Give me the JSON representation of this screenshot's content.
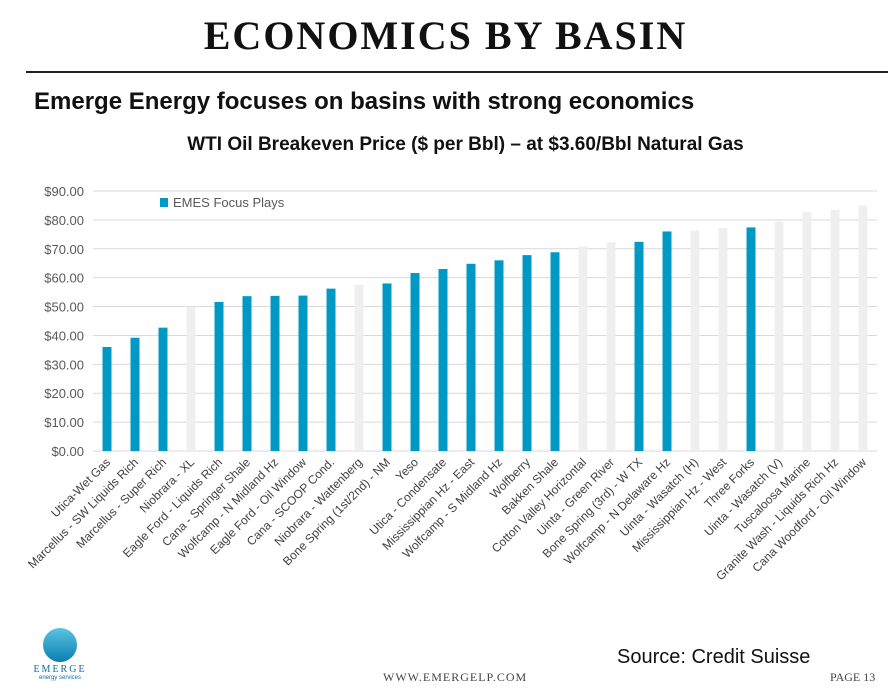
{
  "header": {
    "title": "ECONOMICS BY BASIN",
    "subtitle": "Emerge Energy focuses on basins with strong economics"
  },
  "footer": {
    "source": "Source:  Credit Suisse",
    "website": "WWW.EMERGELP.COM",
    "page": "PAGE 13",
    "logo_text": "EMERGE",
    "logo_subtext": "energy services"
  },
  "chart_data": {
    "type": "bar",
    "title": "WTI Oil Breakeven Price ($ per Bbl) – at $3.60/Bbl Natural Gas",
    "ylim": [
      0,
      90
    ],
    "yticks": [
      "$0.00",
      "$10.00",
      "$20.00",
      "$30.00",
      "$40.00",
      "$50.00",
      "$60.00",
      "$70.00",
      "$80.00",
      "$90.00"
    ],
    "grid": true,
    "legend": {
      "position": "top-left",
      "label": "EMES Focus Plays"
    },
    "colors": {
      "focus": "#0099c6",
      "other": "#efefef"
    },
    "categories": [
      "Utica-Wet Gas",
      "Marcellus - SW Liquids Rich",
      "Marcellus - Super Rich",
      "Niobrara - XL",
      "Eagle Ford - Liquids Rich",
      "Cana - Springer Shale",
      "Wolfcamp - N Midland Hz",
      "Eagle Ford - Oil Window",
      "Cana - SCOOP Cond.",
      "Niobrara - Wattenberg",
      "Bone Spring (1st/2nd) - NM",
      "Yeso",
      "Utica - Condensate",
      "Mississippian Hz - East",
      "Wolfcamp - S Midland Hz",
      "Wolfberry",
      "Bakken Shale",
      "Cotton Valley Horizontal",
      "Uinta - Green River",
      "Bone Spring (3rd) - W TX",
      "Wolfcamp - N Delaware Hz",
      "Uinta - Wasatch (H)",
      "Mississippian Hz - West",
      "Three Forks",
      "Uinta - Wasatch (V)",
      "Tuscaloosa Marine",
      "Granite Wash - Liquids Rich Hz",
      "Cana Woodford - Oil Window"
    ],
    "values": [
      36,
      39.2,
      42.7,
      50,
      51.6,
      53.6,
      53.7,
      53.8,
      56.2,
      57.6,
      58,
      61.6,
      63,
      64.8,
      66,
      67.8,
      68.8,
      70.8,
      72.2,
      72.4,
      76,
      76.3,
      77.2,
      77.4,
      79.4,
      82.8,
      83.5,
      85
    ],
    "focus": [
      true,
      true,
      true,
      false,
      true,
      true,
      true,
      true,
      true,
      false,
      true,
      true,
      true,
      true,
      true,
      true,
      true,
      false,
      false,
      true,
      true,
      false,
      false,
      true,
      false,
      false,
      false,
      false
    ]
  }
}
